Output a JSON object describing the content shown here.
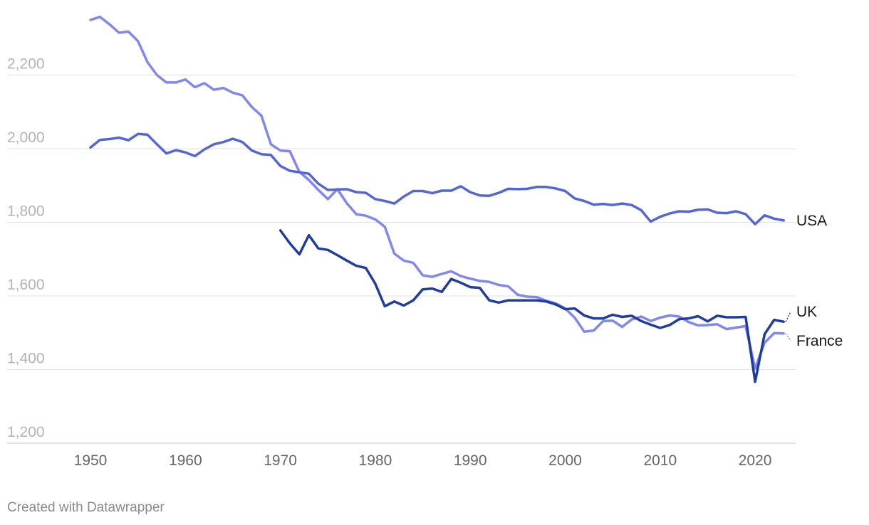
{
  "chart_data": {
    "type": "line",
    "title": "",
    "xlabel": "",
    "ylabel": "",
    "xlim": [
      1950,
      2024
    ],
    "ylim": [
      1200,
      2400
    ],
    "grid": true,
    "y_ticks": [
      1200,
      1400,
      1600,
      1800,
      2000,
      2200
    ],
    "y_tick_labels": [
      "1,200",
      "1,400",
      "1,600",
      "1,800",
      "2,000",
      "2,200"
    ],
    "x_ticks": [
      1950,
      1960,
      1970,
      1980,
      1990,
      2000,
      2010,
      2020
    ],
    "x_tick_labels": [
      "1950",
      "1960",
      "1970",
      "1980",
      "1990",
      "2000",
      "2010",
      "2020"
    ],
    "series": [
      {
        "name": "France",
        "color": "#8088f0",
        "label": "France",
        "x": [
          1950,
          1951,
          1952,
          1953,
          1954,
          1955,
          1956,
          1957,
          1958,
          1959,
          1960,
          1961,
          1962,
          1963,
          1964,
          1965,
          1966,
          1967,
          1968,
          1969,
          1970,
          1971,
          1972,
          1973,
          1974,
          1975,
          1976,
          1977,
          1978,
          1979,
          1980,
          1981,
          1982,
          1983,
          1984,
          1985,
          1986,
          1987,
          1988,
          1989,
          1990,
          1991,
          1992,
          1993,
          1994,
          1995,
          1996,
          1997,
          1998,
          1999,
          2000,
          2001,
          2002,
          2003,
          2004,
          2005,
          2006,
          2007,
          2008,
          2009,
          2010,
          2011,
          2012,
          2013,
          2014,
          2015,
          2016,
          2017,
          2018,
          2019,
          2020,
          2021,
          2022,
          2023
        ],
        "values": [
          2350,
          2358,
          2338,
          2315,
          2318,
          2292,
          2235,
          2200,
          2180,
          2180,
          2188,
          2167,
          2178,
          2160,
          2165,
          2152,
          2145,
          2113,
          2090,
          2012,
          1995,
          1993,
          1937,
          1915,
          1888,
          1863,
          1890,
          1852,
          1822,
          1818,
          1808,
          1788,
          1715,
          1696,
          1690,
          1656,
          1652,
          1660,
          1667,
          1654,
          1647,
          1641,
          1638,
          1630,
          1626,
          1603,
          1598,
          1597,
          1587,
          1580,
          1566,
          1541,
          1503,
          1506,
          1532,
          1533,
          1516,
          1536,
          1544,
          1532,
          1541,
          1547,
          1544,
          1529,
          1520,
          1521,
          1523,
          1510,
          1514,
          1518,
          1403,
          1473,
          1499,
          1498
        ]
      },
      {
        "name": "USA",
        "color": "#5466d4",
        "label": "USA",
        "x": [
          1950,
          1951,
          1952,
          1953,
          1954,
          1955,
          1956,
          1957,
          1958,
          1959,
          1960,
          1961,
          1962,
          1963,
          1964,
          1965,
          1966,
          1967,
          1968,
          1969,
          1970,
          1971,
          1972,
          1973,
          1974,
          1975,
          1976,
          1977,
          1978,
          1979,
          1980,
          1981,
          1982,
          1983,
          1984,
          1985,
          1986,
          1987,
          1988,
          1989,
          1990,
          1991,
          1992,
          1993,
          1994,
          1995,
          1996,
          1997,
          1998,
          1999,
          2000,
          2001,
          2002,
          2003,
          2004,
          2005,
          2006,
          2007,
          2008,
          2009,
          2010,
          2011,
          2012,
          2013,
          2014,
          2015,
          2016,
          2017,
          2018,
          2019,
          2020,
          2021,
          2022,
          2023
        ],
        "values": [
          2003,
          2024,
          2026,
          2030,
          2023,
          2040,
          2038,
          2012,
          1987,
          1996,
          1990,
          1980,
          1998,
          2012,
          2018,
          2027,
          2018,
          1995,
          1985,
          1983,
          1953,
          1940,
          1936,
          1932,
          1905,
          1888,
          1889,
          1890,
          1882,
          1880,
          1863,
          1858,
          1851,
          1870,
          1885,
          1885,
          1879,
          1886,
          1886,
          1898,
          1882,
          1873,
          1872,
          1880,
          1891,
          1890,
          1891,
          1896,
          1896,
          1892,
          1885,
          1865,
          1858,
          1848,
          1850,
          1847,
          1851,
          1847,
          1833,
          1802,
          1815,
          1824,
          1830,
          1829,
          1834,
          1835,
          1826,
          1825,
          1830,
          1822,
          1795,
          1819,
          1810,
          1805
        ]
      },
      {
        "name": "UK",
        "color": "#1f3d9e",
        "label": "UK",
        "x": [
          1970,
          1971,
          1972,
          1973,
          1974,
          1975,
          1976,
          1977,
          1978,
          1979,
          1980,
          1981,
          1982,
          1983,
          1984,
          1985,
          1986,
          1987,
          1988,
          1989,
          1990,
          1991,
          1992,
          1993,
          1994,
          1995,
          1996,
          1997,
          1998,
          1999,
          2000,
          2001,
          2002,
          2003,
          2004,
          2005,
          2006,
          2007,
          2008,
          2009,
          2010,
          2011,
          2012,
          2013,
          2014,
          2015,
          2016,
          2017,
          2018,
          2019,
          2020,
          2021,
          2022,
          2023
        ],
        "values": [
          1778,
          1743,
          1713,
          1765,
          1729,
          1725,
          1711,
          1696,
          1682,
          1676,
          1633,
          1572,
          1585,
          1574,
          1588,
          1618,
          1620,
          1611,
          1646,
          1636,
          1624,
          1622,
          1588,
          1582,
          1588,
          1588,
          1588,
          1588,
          1585,
          1577,
          1564,
          1566,
          1547,
          1539,
          1539,
          1549,
          1543,
          1546,
          1532,
          1522,
          1513,
          1521,
          1537,
          1539,
          1545,
          1531,
          1546,
          1542,
          1542,
          1543,
          1367,
          1496,
          1535,
          1530
        ]
      }
    ]
  },
  "footer": {
    "credit": "Created with Datawrapper"
  }
}
